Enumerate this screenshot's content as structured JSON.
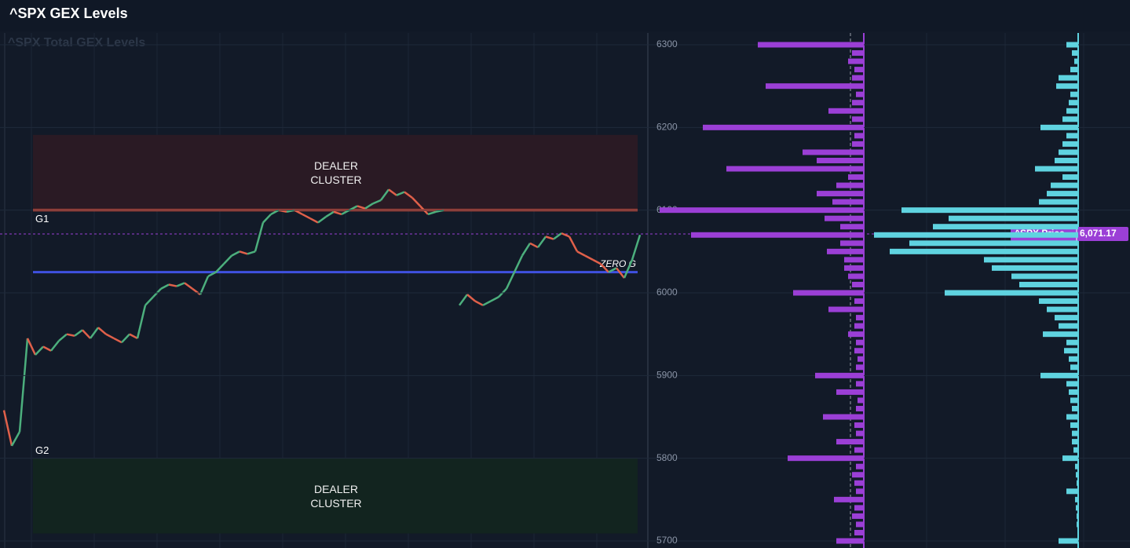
{
  "title": "^SPX GEX Levels",
  "chart_data": [
    {
      "type": "line",
      "watermark": "^SPX Total GEX Levels",
      "ylim": [
        5700,
        6300
      ],
      "up_color": "#4caf7d",
      "down_color": "#e0604a",
      "values": [
        5858,
        5815,
        5832,
        5945,
        5925,
        5935,
        5930,
        5942,
        5950,
        5948,
        5955,
        5945,
        5958,
        5950,
        5945,
        5940,
        5950,
        5945,
        5985,
        5995,
        6005,
        6010,
        6008,
        6012,
        6005,
        5998,
        6020,
        6025,
        6035,
        6045,
        6050,
        6047,
        6050,
        6085,
        6095,
        6100,
        6098,
        6100,
        6095,
        6090,
        6085,
        6092,
        6098,
        6095,
        6100,
        6105,
        6102,
        6108,
        6112,
        6125,
        6118,
        6122,
        6115,
        6105,
        6095,
        6098,
        6100,
        null,
        5985,
        5998,
        5990,
        5985,
        5990,
        5995,
        6005,
        6025,
        6045,
        6060,
        6055,
        6068,
        6065,
        6072,
        6068,
        6050,
        6045,
        6040,
        6035,
        6025,
        6030,
        6018,
        6040,
        6070
      ],
      "zones": [
        {
          "label": "DEALER CLUSTER",
          "from": 6100,
          "to": 6191,
          "color": "#2a1a24"
        },
        {
          "label": "DEALER CLUSTER",
          "from": 5709,
          "to": 5800,
          "color": "#12241f"
        }
      ],
      "levels": [
        {
          "label": "G1",
          "value": 6100,
          "color": "#e0523e"
        },
        {
          "label": "G2",
          "value": 5800
        },
        {
          "label": "ZERO G",
          "value": 6025,
          "color": "#3f51e0"
        }
      ],
      "price": {
        "label": "^SPX Price",
        "value": 6071.17,
        "value_label": "6,071.17",
        "color": "#9b3fd6"
      }
    },
    {
      "type": "bar",
      "orientation": "horizontal",
      "ylim": [
        5700,
        6300
      ],
      "xlim": [
        0,
        265
      ],
      "yticks": [
        5700,
        5800,
        5900,
        6000,
        6100,
        6200,
        6300
      ],
      "grid": true,
      "y": [
        6300,
        6290,
        6280,
        6270,
        6260,
        6250,
        6240,
        6230,
        6220,
        6210,
        6200,
        6190,
        6180,
        6170,
        6160,
        6150,
        6140,
        6130,
        6120,
        6110,
        6100,
        6090,
        6080,
        6070,
        6060,
        6050,
        6040,
        6030,
        6020,
        6010,
        6000,
        5990,
        5980,
        5970,
        5960,
        5950,
        5940,
        5930,
        5920,
        5910,
        5900,
        5890,
        5880,
        5870,
        5860,
        5850,
        5840,
        5830,
        5820,
        5810,
        5800,
        5790,
        5780,
        5770,
        5760,
        5750,
        5740,
        5730,
        5720,
        5710,
        5700
      ],
      "series": [
        {
          "color": "#9b3fd6",
          "values": [
            135,
            15,
            20,
            12,
            15,
            125,
            10,
            15,
            45,
            15,
            205,
            12,
            15,
            78,
            60,
            175,
            20,
            35,
            60,
            40,
            260,
            50,
            30,
            220,
            30,
            47,
            25,
            25,
            20,
            15,
            90,
            12,
            45,
            10,
            12,
            20,
            10,
            12,
            8,
            10,
            62,
            10,
            35,
            8,
            10,
            52,
            12,
            10,
            35,
            12,
            97,
            10,
            15,
            12,
            10,
            38,
            12,
            15,
            10,
            12,
            35
          ]
        },
        {
          "color": "#5fd3e0",
          "values": [
            15,
            8,
            5,
            10,
            25,
            28,
            10,
            12,
            15,
            20,
            48,
            15,
            20,
            25,
            30,
            55,
            20,
            35,
            40,
            50,
            225,
            165,
            185,
            260,
            215,
            240,
            120,
            110,
            85,
            75,
            170,
            50,
            40,
            30,
            25,
            45,
            15,
            18,
            12,
            10,
            48,
            15,
            12,
            10,
            8,
            15,
            10,
            8,
            8,
            6,
            20,
            4,
            3,
            2,
            15,
            4,
            3,
            2,
            2,
            1,
            25
          ]
        }
      ]
    }
  ]
}
